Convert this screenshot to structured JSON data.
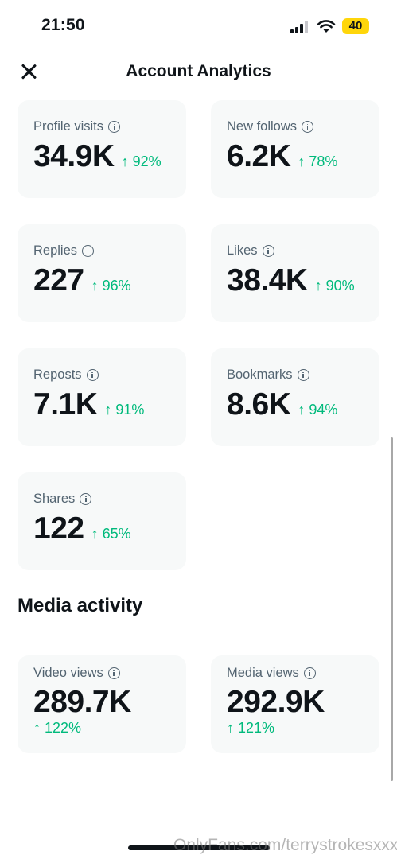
{
  "status_bar": {
    "time": "21:50",
    "battery": "40"
  },
  "header": {
    "title": "Account Analytics"
  },
  "metrics": [
    {
      "label": "Profile visits",
      "value": "34.9K",
      "change": "↑ 92%"
    },
    {
      "label": "New follows",
      "value": "6.2K",
      "change": "↑ 78%"
    },
    {
      "label": "Replies",
      "value": "227",
      "change": "↑ 96%"
    },
    {
      "label": "Likes",
      "value": "38.4K",
      "change": "↑ 90%"
    },
    {
      "label": "Reposts",
      "value": "7.1K",
      "change": "↑ 91%"
    },
    {
      "label": "Bookmarks",
      "value": "8.6K",
      "change": "↑ 94%"
    },
    {
      "label": "Shares",
      "value": "122",
      "change": "↑ 65%"
    }
  ],
  "media_activity": {
    "title": "Media activity",
    "metrics": [
      {
        "label": "Video views",
        "value": "289.7K",
        "change": "↑ 122%"
      },
      {
        "label": "Media views",
        "value": "292.9K",
        "change": "↑ 121%"
      }
    ]
  },
  "watermark": "OnlyFans.com/terrystrokesxxx",
  "colors": {
    "accent_positive": "#00ba7c",
    "card_background": "#f7f9f9",
    "secondary_text": "#536471"
  }
}
